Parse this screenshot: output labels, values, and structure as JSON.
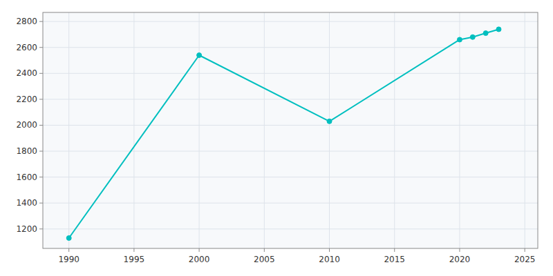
{
  "chart_data": {
    "type": "line",
    "x": [
      1990,
      2000,
      2010,
      2020,
      2021,
      2022,
      2023
    ],
    "values": [
      1130,
      2540,
      2030,
      2660,
      2680,
      2710,
      2740
    ],
    "color": "#00BFBF",
    "marker": "circle",
    "xlim": [
      1988,
      2026
    ],
    "ylim": [
      1050,
      2870
    ],
    "xticks": [
      1990,
      1995,
      2000,
      2005,
      2010,
      2015,
      2020,
      2025
    ],
    "yticks": [
      1200,
      1400,
      1600,
      1800,
      2000,
      2200,
      2400,
      2600,
      2800
    ],
    "grid": true
  }
}
